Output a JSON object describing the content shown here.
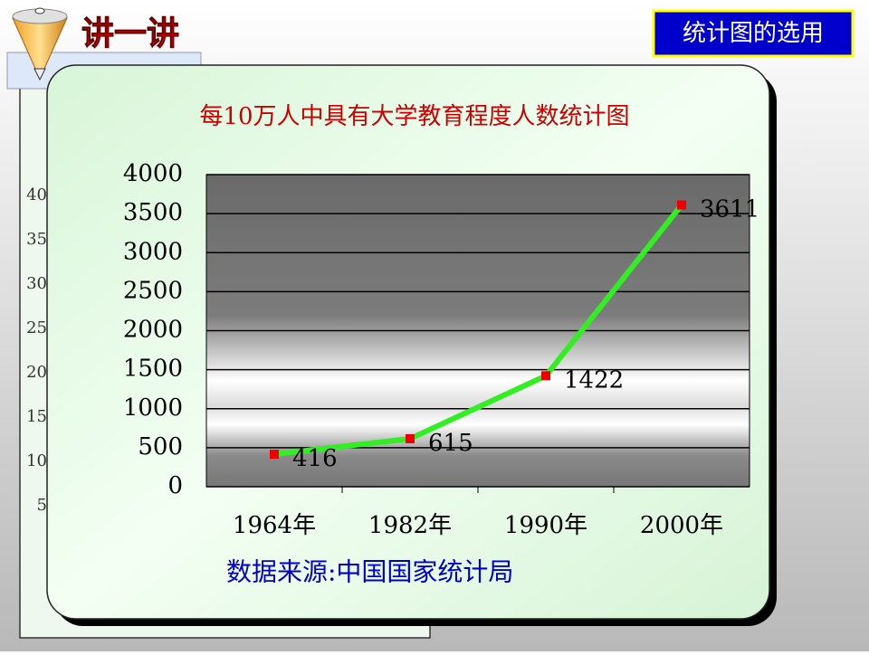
{
  "header": {
    "title": "讲一讲",
    "badge": "统计图的选用"
  },
  "behind_panel": {
    "labels": [
      40,
      35,
      30,
      25,
      20,
      15,
      10,
      5
    ]
  },
  "chart_data": {
    "type": "line",
    "title": "每10万人中具有大学教育程度人数统计图",
    "categories": [
      "1964年",
      "1982年",
      "1990年",
      "2000年"
    ],
    "values": [
      416,
      615,
      1422,
      3611
    ],
    "color": "#33ee22",
    "marker_color": "#ee0000",
    "ylim": [
      0,
      4000
    ],
    "yticks": [
      0,
      500,
      1000,
      1500,
      2000,
      2500,
      3000,
      3500,
      4000
    ],
    "grid": true,
    "data_labels": true,
    "source": "数据来源:中国国家统计局"
  }
}
